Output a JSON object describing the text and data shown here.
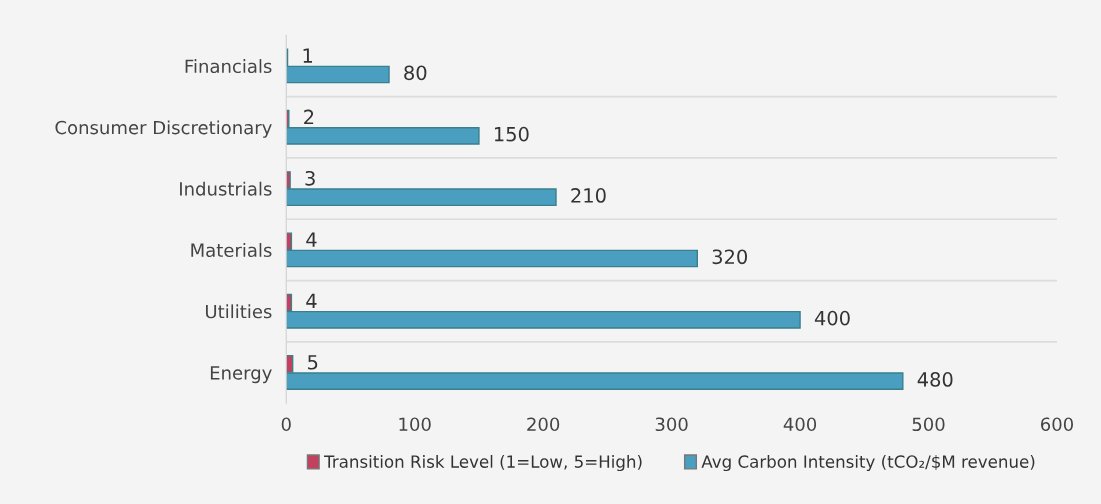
{
  "chart_data": {
    "type": "bar",
    "orientation": "horizontal",
    "categories": [
      "Financials",
      "Consumer Discretionary",
      "Industrials",
      "Materials",
      "Utilities",
      "Energy"
    ],
    "series": [
      {
        "name": "Transition Risk Level (1=Low, 5=High)",
        "color": "#c2415e",
        "values": [
          1,
          2,
          3,
          4,
          4,
          5
        ]
      },
      {
        "name": "Avg Carbon Intensity (tCO₂/$M revenue)",
        "color": "#4a9fc0",
        "values": [
          80,
          150,
          210,
          320,
          400,
          480
        ]
      }
    ],
    "xlim": [
      0,
      600
    ],
    "xticks": [
      0,
      100,
      200,
      300,
      400,
      500,
      600
    ],
    "data_labels": true,
    "grid": "y",
    "legend": "bottom"
  }
}
